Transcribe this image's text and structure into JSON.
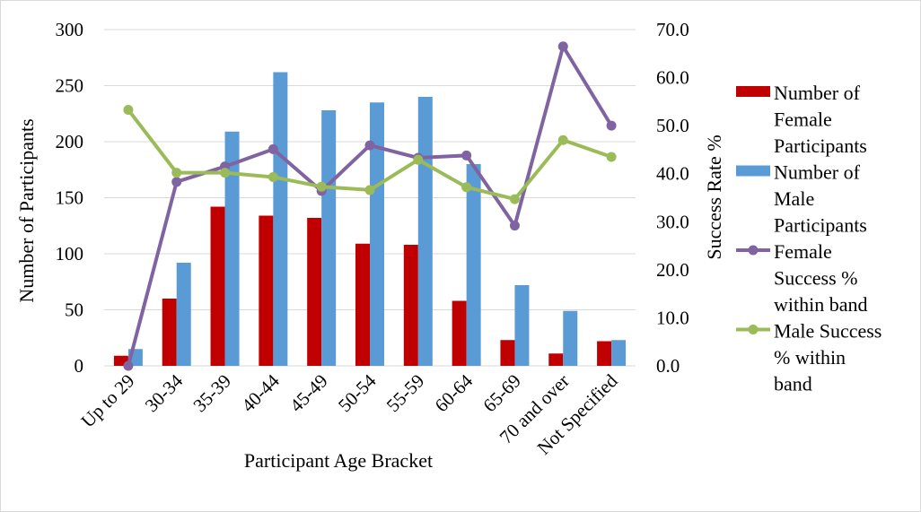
{
  "chart_data": {
    "type": "bar",
    "xlabel": "Participant Age Bracket",
    "ylabel": "Number of Participants",
    "y2label": "Success Rate %",
    "categories": [
      "Up to 29",
      "30-34",
      "35-39",
      "40-44",
      "45-49",
      "50-54",
      "55-59",
      "60-64",
      "65-69",
      "70 and over",
      "Not Specified"
    ],
    "ylim": [
      0,
      300
    ],
    "y_ticks": [
      "0",
      "50",
      "100",
      "150",
      "200",
      "250",
      "300"
    ],
    "y2lim": [
      0,
      70
    ],
    "y2_ticks": [
      "0.0",
      "10.0",
      "20.0",
      "30.0",
      "40.0",
      "50.0",
      "60.0",
      "70.0"
    ],
    "grid": true,
    "legend_position": "right",
    "series": [
      {
        "name": "Number of Female Participants",
        "legend_lines": [
          "Number of",
          "Female",
          "Participants"
        ],
        "type": "bar",
        "axis": "left",
        "color": "#C00000",
        "values": [
          9,
          60,
          142,
          134,
          132,
          109,
          108,
          58,
          23,
          11,
          22
        ]
      },
      {
        "name": "Number of Male Participants",
        "legend_lines": [
          "Number of",
          "Male",
          "Participants"
        ],
        "type": "bar",
        "axis": "left",
        "color": "#5B9BD5",
        "values": [
          15,
          92,
          209,
          262,
          228,
          235,
          240,
          180,
          72,
          49,
          23
        ]
      },
      {
        "name": "Female Success % within band",
        "legend_lines": [
          "Female",
          "Success %",
          "within band"
        ],
        "type": "line",
        "axis": "right",
        "color": "#8064A2",
        "values": [
          0.0,
          38.3,
          41.5,
          45.1,
          36.4,
          45.9,
          43.3,
          43.8,
          29.2,
          66.5,
          50.0
        ]
      },
      {
        "name": "Male Success % within band",
        "legend_lines": [
          "Male Success",
          "% within",
          "band"
        ],
        "type": "line",
        "axis": "right",
        "color": "#9BBB59",
        "values": [
          53.3,
          40.2,
          40.2,
          39.3,
          37.3,
          36.6,
          42.9,
          37.2,
          34.7,
          47.0,
          43.5
        ]
      }
    ]
  }
}
